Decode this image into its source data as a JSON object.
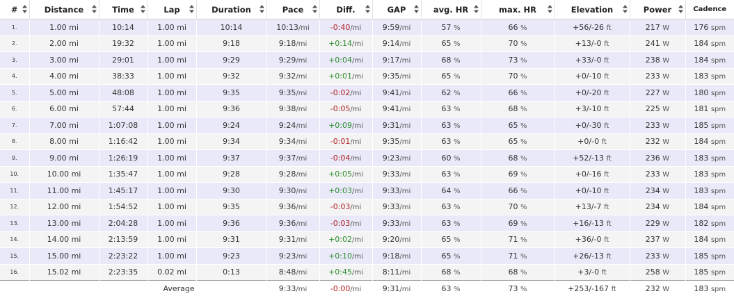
{
  "columns": [
    {
      "key": "num",
      "label": "#"
    },
    {
      "key": "distance",
      "label": "Distance"
    },
    {
      "key": "time",
      "label": "Time"
    },
    {
      "key": "lap",
      "label": "Lap"
    },
    {
      "key": "duration",
      "label": "Duration"
    },
    {
      "key": "pace",
      "label": "Pace"
    },
    {
      "key": "diff",
      "label": "Diff."
    },
    {
      "key": "gap",
      "label": "GAP"
    },
    {
      "key": "avg_hr",
      "label": "avg. HR"
    },
    {
      "key": "max_hr",
      "label": "max. HR"
    },
    {
      "key": "elevation",
      "label": "Elevation"
    },
    {
      "key": "power",
      "label": "Power"
    },
    {
      "key": "cadence",
      "label": "Cadence"
    }
  ],
  "units": {
    "pace": "/mi",
    "diff": "/mi",
    "gap": "/mi",
    "hr": "%",
    "elevation": "ft",
    "power": "W",
    "cadence": "spm"
  },
  "colors": {
    "row_odd": "#e9e9f9",
    "row_even": "#f4f4f4",
    "positive": "#2e8b2e",
    "negative": "#b02020"
  },
  "icons": {
    "sort": "sort-arrows-icon"
  },
  "rows": [
    {
      "num": "1.",
      "distance": "1.00 mi",
      "time": "10:14",
      "lap": "1.00 mi",
      "duration": "10:14",
      "pace": "10:13",
      "diff": "-0:40",
      "diff_sign": "neg",
      "gap": "9:59",
      "avg_hr": "57",
      "max_hr": "66",
      "elevation": "+56/-26",
      "power": "217",
      "cadence": "176"
    },
    {
      "num": "2.",
      "distance": "2.00 mi",
      "time": "19:32",
      "lap": "1.00 mi",
      "duration": "9:18",
      "pace": "9:18",
      "diff": "+0:14",
      "diff_sign": "pos",
      "gap": "9:14",
      "avg_hr": "65",
      "max_hr": "70",
      "elevation": "+13/-0",
      "power": "241",
      "cadence": "184"
    },
    {
      "num": "3.",
      "distance": "3.00 mi",
      "time": "29:01",
      "lap": "1.00 mi",
      "duration": "9:29",
      "pace": "9:29",
      "diff": "+0:04",
      "diff_sign": "pos",
      "gap": "9:17",
      "avg_hr": "68",
      "max_hr": "73",
      "elevation": "+33/-0",
      "power": "238",
      "cadence": "184"
    },
    {
      "num": "4.",
      "distance": "4.00 mi",
      "time": "38:33",
      "lap": "1.00 mi",
      "duration": "9:32",
      "pace": "9:32",
      "diff": "+0:01",
      "diff_sign": "pos",
      "gap": "9:35",
      "avg_hr": "65",
      "max_hr": "70",
      "elevation": "+0/-10",
      "power": "233",
      "cadence": "183"
    },
    {
      "num": "5.",
      "distance": "5.00 mi",
      "time": "48:08",
      "lap": "1.00 mi",
      "duration": "9:35",
      "pace": "9:35",
      "diff": "-0:02",
      "diff_sign": "neg",
      "gap": "9:41",
      "avg_hr": "62",
      "max_hr": "66",
      "elevation": "+0/-20",
      "power": "227",
      "cadence": "180"
    },
    {
      "num": "6.",
      "distance": "6.00 mi",
      "time": "57:44",
      "lap": "1.00 mi",
      "duration": "9:36",
      "pace": "9:38",
      "diff": "-0:05",
      "diff_sign": "neg",
      "gap": "9:41",
      "avg_hr": "63",
      "max_hr": "68",
      "elevation": "+3/-10",
      "power": "225",
      "cadence": "181"
    },
    {
      "num": "7.",
      "distance": "7.00 mi",
      "time": "1:07:08",
      "lap": "1.00 mi",
      "duration": "9:24",
      "pace": "9:24",
      "diff": "+0:09",
      "diff_sign": "pos",
      "gap": "9:31",
      "avg_hr": "63",
      "max_hr": "65",
      "elevation": "+0/-30",
      "power": "233",
      "cadence": "185"
    },
    {
      "num": "8.",
      "distance": "8.00 mi",
      "time": "1:16:42",
      "lap": "1.00 mi",
      "duration": "9:34",
      "pace": "9:34",
      "diff": "-0:01",
      "diff_sign": "neg",
      "gap": "9:35",
      "avg_hr": "63",
      "max_hr": "65",
      "elevation": "+0/-0",
      "power": "232",
      "cadence": "184"
    },
    {
      "num": "9.",
      "distance": "9.00 mi",
      "time": "1:26:19",
      "lap": "1.00 mi",
      "duration": "9:37",
      "pace": "9:37",
      "diff": "-0:04",
      "diff_sign": "neg",
      "gap": "9:23",
      "avg_hr": "60",
      "max_hr": "68",
      "elevation": "+52/-13",
      "power": "236",
      "cadence": "183"
    },
    {
      "num": "10.",
      "distance": "10.00 mi",
      "time": "1:35:47",
      "lap": "1.00 mi",
      "duration": "9:28",
      "pace": "9:28",
      "diff": "+0:05",
      "diff_sign": "pos",
      "gap": "9:33",
      "avg_hr": "63",
      "max_hr": "69",
      "elevation": "+0/-16",
      "power": "233",
      "cadence": "183"
    },
    {
      "num": "11.",
      "distance": "11.00 mi",
      "time": "1:45:17",
      "lap": "1.00 mi",
      "duration": "9:30",
      "pace": "9:30",
      "diff": "+0:03",
      "diff_sign": "pos",
      "gap": "9:33",
      "avg_hr": "64",
      "max_hr": "66",
      "elevation": "+0/-10",
      "power": "234",
      "cadence": "183"
    },
    {
      "num": "12.",
      "distance": "12.00 mi",
      "time": "1:54:52",
      "lap": "1.00 mi",
      "duration": "9:35",
      "pace": "9:36",
      "diff": "-0:03",
      "diff_sign": "neg",
      "gap": "9:33",
      "avg_hr": "63",
      "max_hr": "70",
      "elevation": "+13/-7",
      "power": "234",
      "cadence": "184"
    },
    {
      "num": "13.",
      "distance": "13.00 mi",
      "time": "2:04:28",
      "lap": "1.00 mi",
      "duration": "9:36",
      "pace": "9:36",
      "diff": "-0:03",
      "diff_sign": "neg",
      "gap": "9:33",
      "avg_hr": "63",
      "max_hr": "69",
      "elevation": "+16/-13",
      "power": "229",
      "cadence": "182"
    },
    {
      "num": "14.",
      "distance": "14.00 mi",
      "time": "2:13:59",
      "lap": "1.00 mi",
      "duration": "9:31",
      "pace": "9:31",
      "diff": "+0:02",
      "diff_sign": "pos",
      "gap": "9:20",
      "avg_hr": "65",
      "max_hr": "71",
      "elevation": "+36/-0",
      "power": "237",
      "cadence": "184"
    },
    {
      "num": "15.",
      "distance": "15.00 mi",
      "time": "2:23:22",
      "lap": "1.00 mi",
      "duration": "9:23",
      "pace": "9:23",
      "diff": "+0:10",
      "diff_sign": "pos",
      "gap": "9:18",
      "avg_hr": "65",
      "max_hr": "71",
      "elevation": "+26/-13",
      "power": "233",
      "cadence": "185"
    },
    {
      "num": "16.",
      "distance": "15.02 mi",
      "time": "2:23:35",
      "lap": "0.02 mi",
      "duration": "0:13",
      "pace": "8:48",
      "diff": "+0:45",
      "diff_sign": "pos",
      "gap": "8:11",
      "avg_hr": "68",
      "max_hr": "68",
      "elevation": "+3/-0",
      "power": "258",
      "cadence": "185"
    }
  ],
  "average": {
    "label": "Average",
    "pace": "9:33",
    "diff": "-0:00",
    "diff_sign": "neg",
    "gap": "9:31",
    "avg_hr": "63",
    "max_hr": "73",
    "elevation": "+253/-167",
    "power": "232",
    "cadence": "183"
  }
}
